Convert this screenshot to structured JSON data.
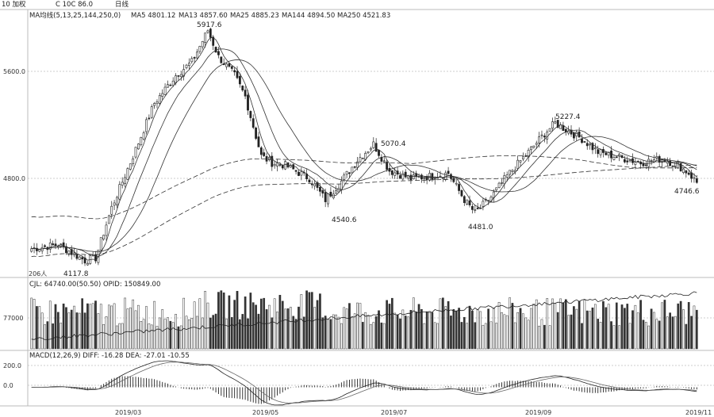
{
  "header": {
    "symbol_tab": "10 加权",
    "sub_tab": "C 10C 86.0",
    "period_tab": "日线",
    "indicator": "MA均线(5,13,25,144,250,0)",
    "ma_values": [
      {
        "label": "MA5 4801.12",
        "color": "#111111"
      },
      {
        "label": "MA13 4857.60",
        "color": "#111111"
      },
      {
        "label": "MA25 4885.23",
        "color": "#111111"
      },
      {
        "label": "MA144 4894.50",
        "color": "#111111"
      },
      {
        "label": "MA250 4521.83",
        "color": "#111111"
      }
    ]
  },
  "panels": {
    "price_scale": [
      "5600.0",
      "4800.0"
    ],
    "price_left_note": "206人",
    "vol_header": "CJL: 64740.00(50.50) OPID: 150849.00",
    "vol_scale": [
      "77000"
    ],
    "macd_header": "MACD(12,26,9) DIFF: -16.28 DEA: -27.01 -10.55",
    "macd_scale": [
      "200.0",
      "0.0"
    ],
    "x_labels": [
      "2019/03",
      "2019/05",
      "2019/07",
      "2019/09",
      "2019/11"
    ]
  },
  "annotations": [
    {
      "label": "5917.6"
    },
    {
      "label": "5070.4"
    },
    {
      "label": "5227.4"
    },
    {
      "label": "4540.6"
    },
    {
      "label": "4481.0"
    },
    {
      "label": "4117.8"
    },
    {
      "label": "4746.6"
    }
  ],
  "chart_data": {
    "type": "candlestick",
    "title": "",
    "x_range": [
      "2019/01",
      "2019/11"
    ],
    "ylim": [
      4080,
      5950
    ],
    "price_waypoints": [
      {
        "i": 0,
        "v": 4250
      },
      {
        "i": 10,
        "v": 4280
      },
      {
        "i": 20,
        "v": 4160
      },
      {
        "i": 24,
        "v": 4180
      },
      {
        "i": 30,
        "v": 4560
      },
      {
        "i": 38,
        "v": 4950
      },
      {
        "i": 46,
        "v": 5350
      },
      {
        "i": 54,
        "v": 5560
      },
      {
        "i": 60,
        "v": 5660
      },
      {
        "i": 66,
        "v": 5900
      },
      {
        "i": 70,
        "v": 5700
      },
      {
        "i": 76,
        "v": 5560
      },
      {
        "i": 80,
        "v": 5400
      },
      {
        "i": 86,
        "v": 4950
      },
      {
        "i": 90,
        "v": 4900
      },
      {
        "i": 95,
        "v": 4880
      },
      {
        "i": 104,
        "v": 4780
      },
      {
        "i": 110,
        "v": 4620
      },
      {
        "i": 116,
        "v": 4760
      },
      {
        "i": 122,
        "v": 4920
      },
      {
        "i": 128,
        "v": 5040
      },
      {
        "i": 134,
        "v": 4840
      },
      {
        "i": 142,
        "v": 4780
      },
      {
        "i": 150,
        "v": 4800
      },
      {
        "i": 156,
        "v": 4820
      },
      {
        "i": 162,
        "v": 4620
      },
      {
        "i": 166,
        "v": 4520
      },
      {
        "i": 172,
        "v": 4640
      },
      {
        "i": 178,
        "v": 4800
      },
      {
        "i": 186,
        "v": 4980
      },
      {
        "i": 192,
        "v": 5120
      },
      {
        "i": 196,
        "v": 5200
      },
      {
        "i": 200,
        "v": 5150
      },
      {
        "i": 206,
        "v": 5080
      },
      {
        "i": 212,
        "v": 4980
      },
      {
        "i": 220,
        "v": 4940
      },
      {
        "i": 228,
        "v": 4900
      },
      {
        "i": 236,
        "v": 4930
      },
      {
        "i": 242,
        "v": 4880
      },
      {
        "i": 246,
        "v": 4820
      },
      {
        "i": 249,
        "v": 4750
      }
    ],
    "ma_series": [
      {
        "name": "MA5",
        "period": 5
      },
      {
        "name": "MA13",
        "period": 13
      },
      {
        "name": "MA25",
        "period": 25
      },
      {
        "name": "MA144",
        "period": 144
      },
      {
        "name": "MA250",
        "period": 250
      }
    ],
    "volume": {
      "ylim": [
        0,
        130000
      ],
      "reference": 77000
    },
    "macd": {
      "ylim": [
        -160,
        230
      ],
      "diff": -16.28,
      "dea": -27.01,
      "macd": -10.55
    }
  }
}
